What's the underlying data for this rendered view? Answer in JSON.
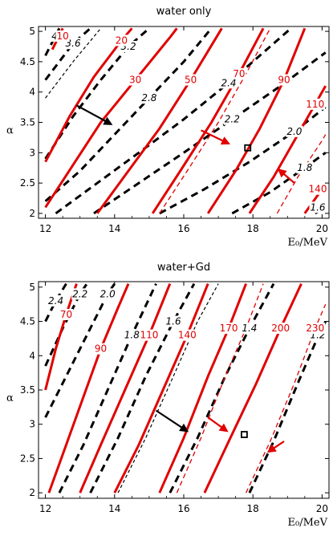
{
  "chart_data": [
    {
      "type": "line",
      "title": "water only",
      "xlabel": "E₀/MeV",
      "ylabel": "α",
      "xlim": [
        11.8,
        20.2
      ],
      "ylim": [
        1.92,
        5.08
      ],
      "xticks": [
        "12",
        "14",
        "16",
        "18",
        "20"
      ],
      "yticks": [
        "2",
        "2.5",
        "3",
        "3.5",
        "4",
        "4.5",
        "5"
      ],
      "grid": false,
      "red_contours": [
        {
          "label": "10",
          "style": "solid",
          "points": [
            [
              12.2,
              4.7
            ],
            [
              12.5,
              5.05
            ]
          ]
        },
        {
          "label": "20",
          "style": "solid",
          "points": [
            [
              12.0,
              2.85
            ],
            [
              12.7,
              3.6
            ],
            [
              13.4,
              4.25
            ],
            [
              14.2,
              4.85
            ],
            [
              14.5,
              5.05
            ]
          ]
        },
        {
          "label": "30",
          "style": "solid",
          "points": [
            [
              12.0,
              2.1
            ],
            [
              12.8,
              2.8
            ],
            [
              13.6,
              3.5
            ],
            [
              14.6,
              4.2
            ],
            [
              15.6,
              4.9
            ],
            [
              15.8,
              5.05
            ]
          ]
        },
        {
          "label": "50",
          "style": "solid",
          "points": [
            [
              13.5,
              2.0
            ],
            [
              14.4,
              2.7
            ],
            [
              15.3,
              3.4
            ],
            [
              16.2,
              4.2
            ],
            [
              17.1,
              5.05
            ]
          ]
        },
        {
          "label": "70",
          "style": "solid",
          "points": [
            [
              15.1,
              2.0
            ],
            [
              15.9,
              2.7
            ],
            [
              16.8,
              3.5
            ],
            [
              17.6,
              4.3
            ],
            [
              18.3,
              5.05
            ]
          ]
        },
        {
          "label": "",
          "style": "dashed",
          "points": [
            [
              15.3,
              2.0
            ],
            [
              16.1,
              2.7
            ],
            [
              17.0,
              3.5
            ],
            [
              17.8,
              4.3
            ],
            [
              18.5,
              5.05
            ]
          ]
        },
        {
          "label": "90",
          "style": "solid",
          "points": [
            [
              16.7,
              2.0
            ],
            [
              17.5,
              2.7
            ],
            [
              18.2,
              3.4
            ],
            [
              18.9,
              4.2
            ],
            [
              19.5,
              5.05
            ]
          ]
        },
        {
          "label": "110",
          "style": "solid",
          "points": [
            [
              17.9,
              2.0
            ],
            [
              18.6,
              2.6
            ],
            [
              19.2,
              3.2
            ],
            [
              19.8,
              3.8
            ],
            [
              20.1,
              4.1
            ]
          ]
        },
        {
          "label": "",
          "style": "dashed",
          "points": [
            [
              18.7,
              2.0
            ],
            [
              19.3,
              2.6
            ],
            [
              20.0,
              3.2
            ],
            [
              20.1,
              3.3
            ]
          ]
        },
        {
          "label": "140",
          "style": "solid",
          "points": [
            [
              19.5,
              2.0
            ],
            [
              20.0,
              2.4
            ],
            [
              20.1,
              2.45
            ]
          ]
        }
      ],
      "black_contours": [
        {
          "label": "4.0",
          "style": "dashed",
          "points": [
            [
              12.0,
              4.6
            ],
            [
              12.4,
              5.05
            ]
          ]
        },
        {
          "label": "3.6",
          "style": "dashed",
          "points": [
            [
              12.0,
              4.2
            ],
            [
              12.8,
              4.8
            ],
            [
              13.3,
              5.05
            ]
          ]
        },
        {
          "label": "",
          "style": "thin-dashed",
          "points": [
            [
              12.0,
              3.9
            ],
            [
              12.8,
              4.5
            ],
            [
              13.6,
              5.05
            ]
          ]
        },
        {
          "label": "3.2",
          "style": "dashed",
          "points": [
            [
              12.0,
              2.9
            ],
            [
              12.8,
              3.6
            ],
            [
              13.6,
              4.2
            ],
            [
              14.4,
              4.75
            ],
            [
              15.0,
              5.05
            ]
          ]
        },
        {
          "label": "2.8",
          "style": "dashed",
          "points": [
            [
              12.0,
              2.2
            ],
            [
              13.0,
              2.7
            ],
            [
              14.0,
              3.3
            ],
            [
              15.0,
              3.9
            ],
            [
              16.0,
              4.5
            ],
            [
              16.8,
              5.05
            ]
          ]
        },
        {
          "label": "2.4",
          "style": "dashed",
          "points": [
            [
              12.3,
              2.0
            ],
            [
              13.5,
              2.5
            ],
            [
              14.7,
              3.0
            ],
            [
              16.0,
              3.55
            ],
            [
              17.3,
              4.15
            ],
            [
              18.6,
              4.8
            ],
            [
              19.1,
              5.05
            ]
          ]
        },
        {
          "label": "2.2",
          "style": "dashed",
          "points": [
            [
              13.4,
              2.0
            ],
            [
              14.7,
              2.5
            ],
            [
              16.0,
              3.0
            ],
            [
              17.4,
              3.55
            ],
            [
              18.8,
              4.1
            ],
            [
              20.1,
              4.65
            ]
          ]
        },
        {
          "label": "2.0",
          "style": "dashed",
          "points": [
            [
              15.3,
              2.0
            ],
            [
              16.6,
              2.4
            ],
            [
              17.9,
              2.85
            ],
            [
              19.2,
              3.35
            ],
            [
              20.1,
              3.75
            ]
          ]
        },
        {
          "label": "1.8",
          "style": "dashed",
          "points": [
            [
              17.4,
              2.0
            ],
            [
              18.5,
              2.35
            ],
            [
              19.5,
              2.75
            ],
            [
              20.1,
              3.0
            ]
          ]
        },
        {
          "label": "1.6",
          "style": "dashed",
          "points": [
            [
              19.8,
              2.0
            ],
            [
              20.1,
              2.1
            ]
          ]
        }
      ],
      "marker": {
        "x": 17.85,
        "y": 3.08
      },
      "arrows": [
        {
          "color": "black",
          "from": [
            12.9,
            3.78
          ],
          "to": [
            13.9,
            3.47
          ]
        },
        {
          "color": "red",
          "from": [
            16.5,
            3.37
          ],
          "to": [
            17.3,
            3.15
          ]
        },
        {
          "color": "red",
          "from": [
            19.2,
            2.5
          ],
          "to": [
            18.75,
            2.72
          ]
        }
      ]
    },
    {
      "type": "line",
      "title": "water+Gd",
      "xlabel": "E₀/MeV",
      "ylabel": "α",
      "xlim": [
        11.8,
        20.2
      ],
      "ylim": [
        1.92,
        5.08
      ],
      "xticks": [
        "12",
        "14",
        "16",
        "18",
        "20"
      ],
      "yticks": [
        "2",
        "2.5",
        "3",
        "3.5",
        "4",
        "4.5",
        "5"
      ],
      "grid": false,
      "red_contours": [
        {
          "label": "70",
          "style": "solid",
          "points": [
            [
              12.0,
              3.5
            ],
            [
              12.3,
              4.1
            ],
            [
              12.6,
              4.6
            ],
            [
              12.9,
              5.05
            ]
          ]
        },
        {
          "label": "90",
          "style": "solid",
          "points": [
            [
              12.1,
              2.0
            ],
            [
              12.6,
              2.7
            ],
            [
              13.1,
              3.4
            ],
            [
              13.6,
              4.1
            ],
            [
              14.1,
              4.7
            ],
            [
              14.4,
              5.05
            ]
          ]
        },
        {
          "label": "110",
          "style": "solid",
          "points": [
            [
              13.0,
              2.0
            ],
            [
              13.6,
              2.7
            ],
            [
              14.3,
              3.5
            ],
            [
              15.0,
              4.3
            ],
            [
              15.6,
              5.05
            ]
          ]
        },
        {
          "label": "140",
          "style": "solid",
          "points": [
            [
              14.0,
              2.0
            ],
            [
              14.7,
              2.7
            ],
            [
              15.4,
              3.5
            ],
            [
              16.1,
              4.3
            ],
            [
              16.7,
              5.05
            ]
          ]
        },
        {
          "label": "170",
          "style": "solid",
          "points": [
            [
              15.3,
              2.0
            ],
            [
              16.0,
              2.8
            ],
            [
              16.7,
              3.7
            ],
            [
              17.3,
              4.4
            ],
            [
              17.8,
              5.05
            ]
          ]
        },
        {
          "label": "",
          "style": "dashed",
          "points": [
            [
              15.8,
              2.0
            ],
            [
              16.5,
              2.8
            ],
            [
              17.2,
              3.7
            ],
            [
              17.8,
              4.4
            ],
            [
              18.3,
              5.05
            ]
          ]
        },
        {
          "label": "200",
          "style": "solid",
          "points": [
            [
              16.6,
              2.0
            ],
            [
              17.3,
              2.75
            ],
            [
              18.1,
              3.6
            ],
            [
              18.8,
              4.4
            ],
            [
              19.4,
              5.05
            ]
          ]
        },
        {
          "label": "230",
          "style": "dashed",
          "points": [
            [
              17.8,
              2.0
            ],
            [
              18.5,
              2.75
            ],
            [
              19.2,
              3.6
            ],
            [
              19.8,
              4.4
            ],
            [
              20.1,
              4.75
            ]
          ]
        }
      ],
      "black_contours": [
        {
          "label": "2.4",
          "style": "dashed",
          "points": [
            [
              12.0,
              4.5
            ],
            [
              12.3,
              4.8
            ],
            [
              12.6,
              5.05
            ]
          ]
        },
        {
          "label": "2.2",
          "style": "dashed",
          "points": [
            [
              12.0,
              3.85
            ],
            [
              12.5,
              4.4
            ],
            [
              13.0,
              4.9
            ],
            [
              13.2,
              5.05
            ]
          ]
        },
        {
          "label": "2.0",
          "style": "dashed",
          "points": [
            [
              12.0,
              3.1
            ],
            [
              12.6,
              3.7
            ],
            [
              13.2,
              4.3
            ],
            [
              13.8,
              4.9
            ],
            [
              14.0,
              5.05
            ]
          ]
        },
        {
          "label": "1.8",
          "style": "dashed",
          "points": [
            [
              12.4,
              2.0
            ],
            [
              13.1,
              2.7
            ],
            [
              13.8,
              3.5
            ],
            [
              14.5,
              4.3
            ],
            [
              15.2,
              5.05
            ]
          ]
        },
        {
          "label": "1.6",
          "style": "dashed",
          "points": [
            [
              13.3,
              2.0
            ],
            [
              14.1,
              2.8
            ],
            [
              14.9,
              3.7
            ],
            [
              15.7,
              4.5
            ],
            [
              16.3,
              5.05
            ]
          ]
        },
        {
          "label": "",
          "style": "thin-dashed",
          "points": [
            [
              14.1,
              2.0
            ],
            [
              14.9,
              2.8
            ],
            [
              15.7,
              3.7
            ],
            [
              16.4,
              4.5
            ],
            [
              17.0,
              5.05
            ]
          ]
        },
        {
          "label": "1.4",
          "style": "dashed",
          "points": [
            [
              15.6,
              2.0
            ],
            [
              16.4,
              2.8
            ],
            [
              17.2,
              3.7
            ],
            [
              17.9,
              4.4
            ],
            [
              18.6,
              5.05
            ]
          ]
        },
        {
          "label": "1.2",
          "style": "dashed",
          "points": [
            [
              17.9,
              2.0
            ],
            [
              18.6,
              2.75
            ],
            [
              19.3,
              3.6
            ],
            [
              19.9,
              4.3
            ],
            [
              20.1,
              4.5
            ]
          ]
        }
      ],
      "marker": {
        "x": 17.75,
        "y": 2.85
      },
      "arrows": [
        {
          "color": "black",
          "from": [
            15.2,
            3.2
          ],
          "to": [
            16.1,
            2.9
          ]
        },
        {
          "color": "red",
          "from": [
            16.7,
            3.1
          ],
          "to": [
            17.25,
            2.9
          ]
        },
        {
          "color": "red",
          "from": [
            18.9,
            2.75
          ],
          "to": [
            18.45,
            2.6
          ]
        }
      ]
    }
  ]
}
